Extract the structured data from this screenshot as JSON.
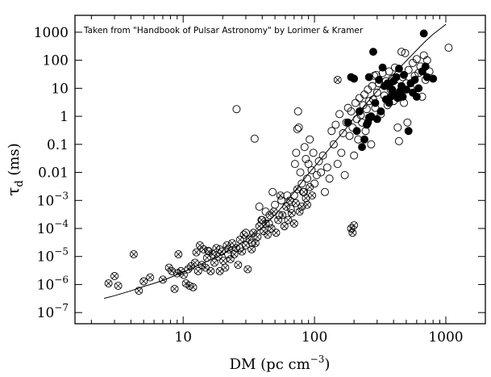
{
  "chart_data": {
    "type": "scatter",
    "title": "",
    "annotation": "Taken from \"Handbook of Pulsar Astronomy\" by Lorimer & Kramer",
    "xlabel": {
      "text": "DM (pc cm",
      "sup": "−3",
      "close": ")"
    },
    "ylabel": {
      "symbol": "τ",
      "sub": "d",
      "unit": " (ms)"
    },
    "x_scale": "log",
    "y_scale": "log",
    "xlim": [
      1.5,
      2000
    ],
    "ylim": [
      4e-08,
      4000
    ],
    "x_ticks": [
      {
        "value": 10,
        "label": "10"
      },
      {
        "value": 100,
        "label": "100"
      },
      {
        "value": 1000,
        "label": "1000"
      }
    ],
    "y_ticks": [
      {
        "value": 1e-07,
        "label": "10",
        "sup": "−7"
      },
      {
        "value": 1e-06,
        "label": "10",
        "sup": "−6"
      },
      {
        "value": 1e-05,
        "label": "10",
        "sup": "−5"
      },
      {
        "value": 0.0001,
        "label": "10",
        "sup": "−4"
      },
      {
        "value": 0.001,
        "label": "10",
        "sup": "−3"
      },
      {
        "value": 0.01,
        "label": "0.01"
      },
      {
        "value": 0.1,
        "label": "0.1"
      },
      {
        "value": 1,
        "label": "1"
      },
      {
        "value": 10,
        "label": "10"
      },
      {
        "value": 100,
        "label": "100"
      },
      {
        "value": 1000,
        "label": "1000"
      }
    ],
    "grid": false,
    "series": [
      {
        "marker": "crossed-circle",
        "points": [
          [
            2.7,
            1.1e-06
          ],
          [
            3.0,
            2e-06
          ],
          [
            3.2,
            9e-07
          ],
          [
            4.2,
            1.2e-05
          ],
          [
            4.6,
            6e-07
          ],
          [
            5.0,
            1.3e-06
          ],
          [
            5.6,
            1.8e-06
          ],
          [
            7.0,
            1.5e-06
          ],
          [
            7.8,
            4e-06
          ],
          [
            8.2,
            3e-06
          ],
          [
            8.6,
            7e-07
          ],
          [
            9.0,
            2.5e-06
          ],
          [
            9.2,
            1.2e-05
          ],
          [
            9.6,
            3e-06
          ],
          [
            10.1,
            2.2e-06
          ],
          [
            10.5,
            1.1e-06
          ],
          [
            10.9,
            3.5e-06
          ],
          [
            11.2,
            9e-07
          ],
          [
            11.5,
            4.5e-06
          ],
          [
            11.9,
            8e-07
          ],
          [
            12.3,
            6e-06
          ],
          [
            12.6,
            1.4e-05
          ],
          [
            13.0,
            3e-06
          ],
          [
            13.4,
            2.5e-05
          ],
          [
            13.9,
            5e-06
          ],
          [
            14.3,
            1.8e-05
          ],
          [
            14.8,
            4e-06
          ],
          [
            15.2,
            9e-06
          ],
          [
            15.7,
            1.5e-05
          ],
          [
            16.2,
            3e-06
          ],
          [
            16.8,
            1.2e-05
          ],
          [
            17.3,
            6e-06
          ],
          [
            17.9,
            2e-05
          ],
          [
            18.5,
            1e-05
          ],
          [
            19.0,
            3e-06
          ],
          [
            19.6,
            1.5e-05
          ],
          [
            20.2,
            7e-06
          ],
          [
            20.9,
            4e-06
          ],
          [
            21.5,
            2.5e-05
          ],
          [
            22.2,
            1.8e-05
          ],
          [
            22.9,
            8e-06
          ],
          [
            23.6,
            3e-05
          ],
          [
            24.5,
            1.2e-05
          ],
          [
            25.3,
            2e-05
          ],
          [
            26.2,
            5e-06
          ],
          [
            27.1,
            4e-05
          ],
          [
            28.0,
            1.5e-05
          ],
          [
            29.0,
            6e-05
          ],
          [
            30.0,
            2.5e-05
          ],
          [
            31.0,
            3.5e-06
          ],
          [
            32.0,
            4e-05
          ],
          [
            33.2,
            1.8e-05
          ],
          [
            34.3,
            7e-05
          ],
          [
            35.5,
            3e-05
          ],
          [
            36.8,
            5e-05
          ],
          [
            38.0,
            0.00012
          ],
          [
            39.5,
            0.0002
          ],
          [
            41.0,
            8e-05
          ],
          [
            42.5,
            0.00015
          ],
          [
            44.0,
            6e-05
          ],
          [
            45.5,
            0.0003
          ],
          [
            47.0,
            0.0001
          ],
          [
            49.0,
            0.0004
          ],
          [
            51.0,
            7e-05
          ],
          [
            53.0,
            0.0002
          ],
          [
            55.0,
            0.0015
          ],
          [
            57.0,
            0.0003
          ],
          [
            59.0,
            0.00012
          ],
          [
            61.0,
            0.0006
          ],
          [
            63.0,
            0.0002
          ],
          [
            65.0,
            0.001
          ],
          [
            67.0,
            0.00035
          ],
          [
            70.0,
            0.00015
          ],
          [
            72.0,
            0.0008
          ],
          [
            74.0,
            0.0025
          ],
          [
            77.0,
            0.0004
          ],
          [
            80.0,
            0.0006
          ],
          [
            83.0,
            0.002
          ],
          [
            86.0,
            0.0012
          ],
          [
            190.0,
            0.0001
          ],
          [
            195.0,
            7e-05
          ],
          [
            200.0,
            0.00013
          ],
          [
            88.0,
            0.0007
          ],
          [
            92.0,
            0.003
          ],
          [
            96.0,
            0.0015
          ],
          [
            150.0,
            20.0
          ]
        ]
      },
      {
        "marker": "open-circle",
        "points": [
          [
            15.5,
            1.6e-05
          ],
          [
            19.0,
            1.8e-05
          ],
          [
            22.0,
            1.2e-05
          ],
          [
            25.5,
            1.8
          ],
          [
            27.0,
            2e-05
          ],
          [
            30.0,
            7e-05
          ],
          [
            33.5,
            3e-05
          ],
          [
            35.0,
            0.16
          ],
          [
            38.0,
            0.0006
          ],
          [
            40.0,
            0.0002
          ],
          [
            42.5,
            0.0004
          ],
          [
            45.0,
            0.00015
          ],
          [
            48.0,
            0.002
          ],
          [
            50.0,
            0.0007
          ],
          [
            54.0,
            0.0003
          ],
          [
            56.0,
            0.001
          ],
          [
            62.0,
            0.0015
          ],
          [
            66.0,
            0.0005
          ],
          [
            70.0,
            0.0015
          ],
          [
            71.0,
            0.02
          ],
          [
            72.5,
            0.05
          ],
          [
            74.0,
            0.35
          ],
          [
            75.0,
            1.5
          ],
          [
            76.0,
            0.4
          ],
          [
            78.0,
            0.01
          ],
          [
            80.0,
            0.004
          ],
          [
            82.0,
            0.002
          ],
          [
            84.0,
            0.08
          ],
          [
            86.0,
            0.03
          ],
          [
            88.0,
            0.006
          ],
          [
            90.0,
            0.02
          ],
          [
            92.0,
            0.15
          ],
          [
            95.0,
            0.012
          ],
          [
            98.0,
            0.05
          ],
          [
            100.0,
            0.004
          ],
          [
            104.0,
            0.008
          ],
          [
            108.0,
            0.025
          ],
          [
            112.0,
            0.01
          ],
          [
            116.0,
            0.04
          ],
          [
            120.0,
            0.002
          ],
          [
            125.0,
            0.015
          ],
          [
            130.0,
            0.006
          ],
          [
            135.0,
            0.3
          ],
          [
            140.0,
            0.1
          ],
          [
            145.0,
            0.5
          ],
          [
            150.0,
            0.02
          ],
          [
            155.0,
            1.2
          ],
          [
            160.0,
            0.05
          ],
          [
            165.0,
            0.25
          ],
          [
            170.0,
            0.008
          ],
          [
            175.0,
            0.6
          ],
          [
            180.0,
            2.0
          ],
          [
            185.0,
            0.2
          ],
          [
            190.0,
            1.5
          ],
          [
            195.0,
            0.4
          ],
          [
            200.0,
            0.04
          ],
          [
            205.0,
            3.0
          ],
          [
            210.0,
            0.8
          ],
          [
            215.0,
            0.15
          ],
          [
            220.0,
            4.5
          ],
          [
            225.0,
            1.1
          ],
          [
            230.0,
            0.6
          ],
          [
            235.0,
            2.5
          ],
          [
            240.0,
            6.0
          ],
          [
            245.0,
            0.3
          ],
          [
            250.0,
            1.8
          ],
          [
            255.0,
            9.0
          ],
          [
            260.0,
            3.5
          ],
          [
            265.0,
            0.9
          ],
          [
            270.0,
            0.1
          ],
          [
            275.0,
            12.0
          ],
          [
            280.0,
            4.0
          ],
          [
            285.0,
            28.0
          ],
          [
            290.0,
            2.0
          ],
          [
            295.0,
            30.0
          ],
          [
            300.0,
            7.0
          ],
          [
            310.0,
            15.0
          ],
          [
            320.0,
            1.2
          ],
          [
            330.0,
            35.0
          ],
          [
            340.0,
            5.5
          ],
          [
            350.0,
            18.0
          ],
          [
            360.0,
            2.5
          ],
          [
            370.0,
            40.0
          ],
          [
            380.0,
            9.0
          ],
          [
            390.0,
            22.0
          ],
          [
            400.0,
            3.5
          ],
          [
            410.0,
            55.0
          ],
          [
            420.0,
            12.0
          ],
          [
            430.0,
            0.4
          ],
          [
            440.0,
            0.13
          ],
          [
            450.0,
            7.0
          ],
          [
            460.0,
            200.0
          ],
          [
            470.0,
            25.0
          ],
          [
            480.0,
            3.0
          ],
          [
            490.0,
            180.0
          ],
          [
            500.0,
            15.0
          ],
          [
            510.0,
            0.6
          ],
          [
            520.0,
            45.0
          ],
          [
            540.0,
            10.0
          ],
          [
            560.0,
            80.0
          ],
          [
            580.0,
            28.0
          ],
          [
            600.0,
            110.0
          ],
          [
            620.0,
            35.0
          ],
          [
            640.0,
            60.0
          ],
          [
            660.0,
            5.0
          ],
          [
            680.0,
            150.0
          ],
          [
            700.0,
            20.0
          ],
          [
            720.0,
            100.0
          ],
          [
            750.0,
            40.0
          ],
          [
            1050.0,
            280.0
          ]
        ]
      },
      {
        "marker": "filled-circle",
        "points": [
          [
            180.0,
            0.6
          ],
          [
            190.0,
            25.0
          ],
          [
            200.0,
            22.0
          ],
          [
            210.0,
            0.3
          ],
          [
            220.0,
            1.5
          ],
          [
            230.0,
            0.08
          ],
          [
            240.0,
            0.15
          ],
          [
            250.0,
            0.5
          ],
          [
            255.0,
            0.6
          ],
          [
            260.0,
            0.9
          ],
          [
            270.0,
            1.0
          ],
          [
            280.0,
            200.0
          ],
          [
            290.0,
            3.0
          ],
          [
            300.0,
            0.8
          ],
          [
            310.0,
            20.0
          ],
          [
            320.0,
            1.5
          ],
          [
            330.0,
            55.0
          ],
          [
            340.0,
            12.0
          ],
          [
            350.0,
            4.0
          ],
          [
            360.0,
            15.0
          ],
          [
            370.0,
            3.0
          ],
          [
            380.0,
            5.0
          ],
          [
            390.0,
            9.0
          ],
          [
            400.0,
            18.0
          ],
          [
            410.0,
            6.0
          ],
          [
            420.0,
            25.0
          ],
          [
            430.0,
            4.5
          ],
          [
            440.0,
            50.0
          ],
          [
            450.0,
            8.0
          ],
          [
            460.0,
            12.0
          ],
          [
            470.0,
            5.0
          ],
          [
            480.0,
            30.0
          ],
          [
            500.0,
            9.0
          ],
          [
            520.0,
            0.3
          ],
          [
            540.0,
            15.0
          ],
          [
            560.0,
            7.0
          ],
          [
            580.0,
            20.0
          ],
          [
            600.0,
            5.0
          ],
          [
            620.0,
            10.0
          ],
          [
            660.0,
            40.0
          ],
          [
            680.0,
            900.0
          ],
          [
            700.0,
            60.0
          ],
          [
            720.0,
            25.0
          ],
          [
            800.0,
            22.0
          ],
          [
            370.0,
            12.0
          ],
          [
            260.0,
            25.0
          ]
        ]
      }
    ],
    "fit_curve": {
      "points": [
        [
          2.5,
          3.2e-07
        ],
        [
          3.0,
          4e-07
        ],
        [
          4.0,
          6e-07
        ],
        [
          5.0,
          8.5e-07
        ],
        [
          6.0,
          1.1e-06
        ],
        [
          7.0,
          1.4e-06
        ],
        [
          8.0,
          1.8e-06
        ],
        [
          10.0,
          2.8e-06
        ],
        [
          12.0,
          4e-06
        ],
        [
          15.0,
          6.5e-06
        ],
        [
          20.0,
          1.2e-05
        ],
        [
          25.0,
          2.2e-05
        ],
        [
          30.0,
          3.8e-05
        ],
        [
          40.0,
          0.00011
        ],
        [
          50.0,
          0.0003
        ],
        [
          60.0,
          0.0008
        ],
        [
          70.0,
          0.002
        ],
        [
          80.0,
          0.0045
        ],
        [
          90.0,
          0.009
        ],
        [
          100.0,
          0.016
        ],
        [
          120.0,
          0.045
        ],
        [
          150.0,
          0.16
        ],
        [
          180.0,
          0.45
        ],
        [
          200.0,
          0.9
        ],
        [
          250.0,
          3.0
        ],
        [
          300.0,
          8.0
        ],
        [
          350.0,
          17.0
        ],
        [
          400.0,
          32.0
        ],
        [
          500.0,
          95.0
        ],
        [
          600.0,
          230.0
        ],
        [
          700.0,
          480.0
        ],
        [
          800.0,
          850.0
        ],
        [
          900.0,
          1300.0
        ],
        [
          1000.0,
          1900.0
        ]
      ]
    }
  }
}
